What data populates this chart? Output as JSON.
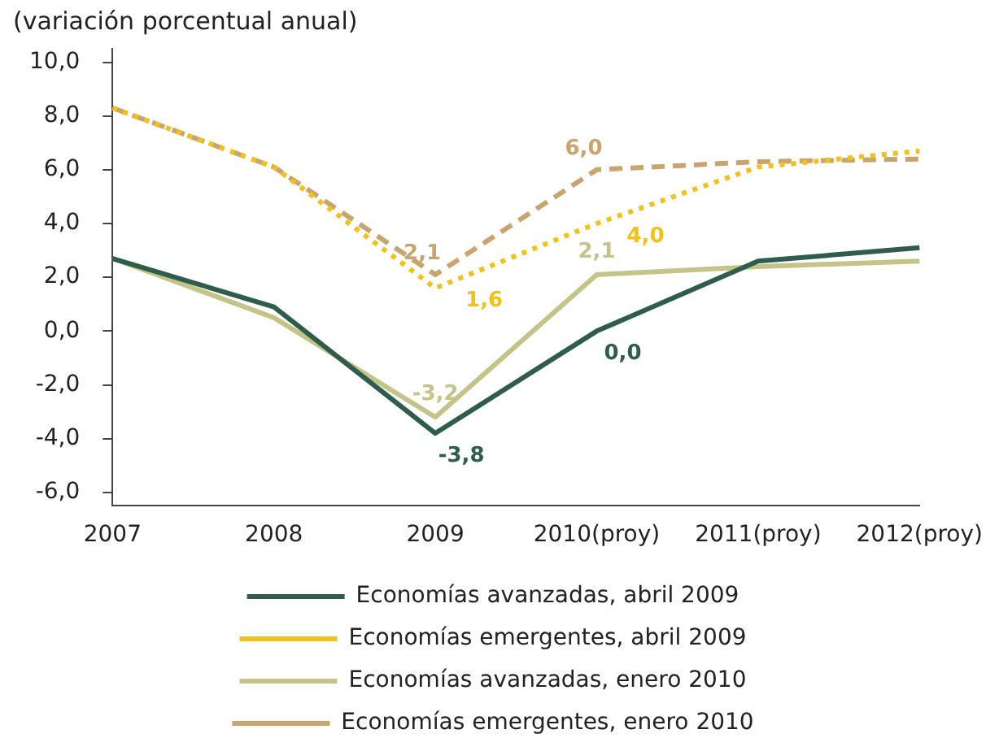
{
  "chart_data": {
    "type": "line",
    "title": "(variación porcentual anual)",
    "categories": [
      "2007",
      "2008",
      "2009",
      "2010(proy)",
      "2011(proy)",
      "2012(proy)"
    ],
    "series": [
      {
        "name": "Economías avanzadas, abril 2009",
        "color": "#2f5d4c",
        "line_style": "solid",
        "values": [
          2.7,
          0.9,
          -3.8,
          0.0,
          2.6,
          3.1
        ],
        "value_labels": [
          null,
          null,
          "-3,8",
          "0,0",
          null,
          null
        ]
      },
      {
        "name": "Economías emergentes, abril 2009",
        "color": "#f2c21b",
        "line_style": "dotted",
        "values": [
          8.3,
          6.1,
          1.6,
          4.0,
          6.1,
          6.7
        ],
        "value_labels": [
          null,
          null,
          "1,6",
          "4,0",
          null,
          null
        ]
      },
      {
        "name": "Economías avanzadas, enero 2010",
        "color": "#c5c488",
        "line_style": "solid",
        "values": [
          2.7,
          0.5,
          -3.2,
          2.1,
          2.4,
          2.6
        ],
        "value_labels": [
          null,
          null,
          "-3,2",
          "2,1",
          null,
          null
        ]
      },
      {
        "name": "Economías emergentes, enero 2010",
        "color": "#c9a46e",
        "line_style": "dashed",
        "values": [
          8.3,
          6.1,
          2.1,
          6.0,
          6.3,
          6.4
        ],
        "value_labels": [
          null,
          null,
          "2,1",
          "6,0",
          null,
          null
        ]
      }
    ],
    "ylim": [
      -6.5,
      10.5
    ],
    "yticks": [
      {
        "value": -6,
        "label": "-6,0"
      },
      {
        "value": -4,
        "label": "-4,0"
      },
      {
        "value": -2,
        "label": "-2,0"
      },
      {
        "value": 0,
        "label": "0,0"
      },
      {
        "value": 2,
        "label": "2,0"
      },
      {
        "value": 4,
        "label": "4,0"
      },
      {
        "value": 6,
        "label": "6,0"
      },
      {
        "value": 8,
        "label": "8,0"
      },
      {
        "value": 10,
        "label": "10,0"
      }
    ],
    "grid": false,
    "legend": "bottom",
    "marker": "none"
  }
}
